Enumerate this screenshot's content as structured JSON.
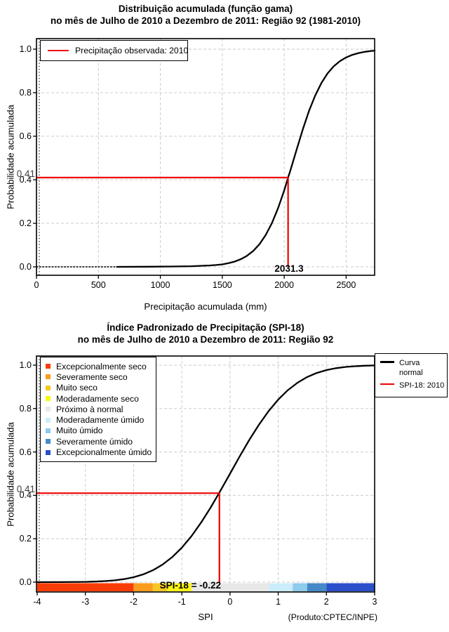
{
  "chart_data": [
    {
      "type": "line",
      "title": "Distribuição acumulada (função gama)",
      "subtitle": "no mês de Julho de 2010 a Dezembro de 2011: Região 92 (1981-2010)",
      "xlabel": "Precipitação acumulada (mm)",
      "ylabel": "Probabilidade acumulada",
      "xlim": [
        0,
        2730
      ],
      "ylim": [
        0,
        1
      ],
      "xticks": [
        0,
        500,
        1000,
        1500,
        2000,
        2500
      ],
      "yticks": [
        0,
        0.2,
        0.4,
        0.6,
        0.8,
        1
      ],
      "ytick_labels": [
        "0.0",
        "0.2",
        "0.4",
        "0.6",
        "0.8",
        "1.0"
      ],
      "grid": true,
      "legend_position": "top-left",
      "legend": [
        {
          "label": "Precipitação observada: 2010",
          "color": "#EE0000",
          "marker": "line"
        }
      ],
      "series": [
        {
          "name": "curva gama acumulada (trecho pontilhado)",
          "color": "#000000",
          "style": "dotted",
          "points": [
            [
              0,
              0
            ],
            [
              650,
              0
            ]
          ]
        },
        {
          "name": "curva gama acumulada",
          "color": "#000000",
          "style": "solid",
          "points": [
            [
              650,
              0
            ],
            [
              900,
              0.0005
            ],
            [
              1100,
              0.0015
            ],
            [
              1250,
              0.003
            ],
            [
              1350,
              0.005
            ],
            [
              1400,
              0.0065
            ],
            [
              1450,
              0.0085
            ],
            [
              1500,
              0.0114
            ],
            [
              1550,
              0.0167
            ],
            [
              1600,
              0.0243
            ],
            [
              1650,
              0.0353
            ],
            [
              1700,
              0.051
            ],
            [
              1750,
              0.0733
            ],
            [
              1800,
              0.104
            ],
            [
              1850,
              0.1456
            ],
            [
              1900,
              0.2003
            ],
            [
              1950,
              0.2689
            ],
            [
              2000,
              0.3508
            ],
            [
              2031.3,
              0.41
            ],
            [
              2050,
              0.4426
            ],
            [
              2100,
              0.5384
            ],
            [
              2150,
              0.6313
            ],
            [
              2200,
              0.7157
            ],
            [
              2250,
              0.7871
            ],
            [
              2300,
              0.8445
            ],
            [
              2350,
              0.8886
            ],
            [
              2400,
              0.9214
            ],
            [
              2450,
              0.9451
            ],
            [
              2500,
              0.962
            ],
            [
              2550,
              0.9738
            ],
            [
              2600,
              0.982
            ],
            [
              2650,
              0.9877
            ],
            [
              2700,
              0.9916
            ],
            [
              2730,
              0.9933
            ]
          ]
        }
      ],
      "annotation": {
        "x": 2031.3,
        "y": 0.41,
        "x_label": "2031.3",
        "y_label": "0.41",
        "color": "#EE0000"
      }
    },
    {
      "type": "line",
      "title": "Índice Padronizado de Precipitação (SPI-18)",
      "subtitle": "no mês de Julho de 2010 a Dezembro de 2011: Região 92",
      "xlabel": "SPI",
      "ylabel": "Probabilidade acumulada",
      "footnote": "(Produto:CPTEC/INPE)",
      "xlim": [
        -4,
        3
      ],
      "ylim": [
        0,
        1
      ],
      "xticks": [
        -4,
        -3,
        -2,
        -1,
        0,
        1,
        2,
        3
      ],
      "yticks": [
        0,
        0.2,
        0.4,
        0.6,
        0.8,
        1
      ],
      "ytick_labels": [
        "0.0",
        "0.2",
        "0.4",
        "0.6",
        "0.8",
        "1.0"
      ],
      "grid": true,
      "category_legend": [
        {
          "label": "Excepcionalmente seco",
          "color": "#F93D08"
        },
        {
          "label": "Severamente seco",
          "color": "#FA9C1E"
        },
        {
          "label": "Muito seco",
          "color": "#F5C724"
        },
        {
          "label": "Moderadamente seco",
          "color": "#FBF613"
        },
        {
          "label": "Próximo à normal",
          "color": "#E8E8E8"
        },
        {
          "label": "Moderadamente úmido",
          "color": "#CCEDFA"
        },
        {
          "label": "Muito úmido",
          "color": "#8FCBEC"
        },
        {
          "label": "Severamente úmido",
          "color": "#4589C8"
        },
        {
          "label": "Excepcionalmente úmido",
          "color": "#2B50CB"
        }
      ],
      "line_legend": [
        {
          "label": "Curva normal",
          "color": "#000000",
          "marker": "line"
        },
        {
          "label": "SPI-18: 2010",
          "color": "#EE0000",
          "marker": "line"
        }
      ],
      "colorbar": [
        {
          "from": -4,
          "to": -2,
          "color": "#F93D08"
        },
        {
          "from": -2,
          "to": -1.6,
          "color": "#FA9C1E"
        },
        {
          "from": -1.6,
          "to": -1.3,
          "color": "#F5C724"
        },
        {
          "from": -1.3,
          "to": -0.8,
          "color": "#FBF613"
        },
        {
          "from": -0.8,
          "to": 0.8,
          "color": "#E8E8E8"
        },
        {
          "from": 0.8,
          "to": 1.3,
          "color": "#CCEDFA"
        },
        {
          "from": 1.3,
          "to": 1.6,
          "color": "#8FCBEC"
        },
        {
          "from": 1.6,
          "to": 2,
          "color": "#4589C8"
        },
        {
          "from": 2,
          "to": 3,
          "color": "#2B50CB"
        }
      ],
      "series": [
        {
          "name": "Curva normal",
          "color": "#000000",
          "style": "solid",
          "points": [
            [
              -4,
              0.0001
            ],
            [
              -3.5,
              0.0002
            ],
            [
              -3,
              0.0013
            ],
            [
              -2.8,
              0.0026
            ],
            [
              -2.6,
              0.0047
            ],
            [
              -2.4,
              0.0082
            ],
            [
              -2.2,
              0.0139
            ],
            [
              -2,
              0.0228
            ],
            [
              -1.8,
              0.0359
            ],
            [
              -1.6,
              0.0548
            ],
            [
              -1.4,
              0.0808
            ],
            [
              -1.2,
              0.1151
            ],
            [
              -1,
              0.1587
            ],
            [
              -0.8,
              0.2119
            ],
            [
              -0.6,
              0.2743
            ],
            [
              -0.4,
              0.3446
            ],
            [
              -0.22,
              0.4129
            ],
            [
              0,
              0.5
            ],
            [
              0.2,
              0.5793
            ],
            [
              0.4,
              0.6554
            ],
            [
              0.6,
              0.7257
            ],
            [
              0.8,
              0.7881
            ],
            [
              1,
              0.8413
            ],
            [
              1.2,
              0.8849
            ],
            [
              1.4,
              0.9192
            ],
            [
              1.6,
              0.9452
            ],
            [
              1.8,
              0.9641
            ],
            [
              2,
              0.9772
            ],
            [
              2.2,
              0.9861
            ],
            [
              2.4,
              0.9918
            ],
            [
              2.6,
              0.9953
            ],
            [
              2.8,
              0.9974
            ],
            [
              3,
              0.9987
            ]
          ]
        }
      ],
      "annotation": {
        "x": -0.22,
        "y": 0.41,
        "label": "SPI-18 = -0.22",
        "y_label": "0.41",
        "color": "#EE0000"
      }
    }
  ]
}
